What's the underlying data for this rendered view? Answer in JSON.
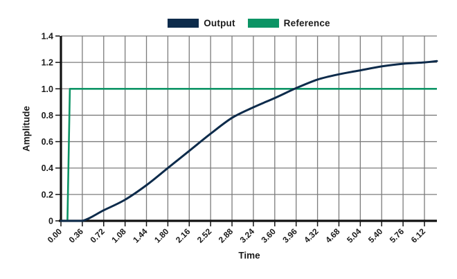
{
  "chart_data": {
    "type": "line",
    "title": "",
    "xlabel": "Time",
    "ylabel": "Amplitude",
    "xlim": [
      0,
      6.33
    ],
    "ylim": [
      0,
      1.4
    ],
    "grid": true,
    "legend_position": "top-center",
    "x_tick_labels": [
      "0.00",
      "0.36",
      "0.72",
      "1.08",
      "1.44",
      "1.80",
      "2.16",
      "2.52",
      "2.88",
      "3.24",
      "3.60",
      "3.96",
      "4.32",
      "4.68",
      "5.04",
      "5.40",
      "5.76",
      "6.12"
    ],
    "y_tick_labels": [
      "0",
      "0.2",
      "0.4",
      "0.6",
      "0.8",
      "1.0",
      "1.2",
      "1.4"
    ],
    "series": [
      {
        "name": "Output",
        "color": "#0d2b4b",
        "x": [
          0,
          0.36,
          0.72,
          1.08,
          1.44,
          1.8,
          2.16,
          2.52,
          2.88,
          3.24,
          3.6,
          3.96,
          4.32,
          4.68,
          5.04,
          5.4,
          5.76,
          6.12,
          6.33
        ],
        "y": [
          0,
          0,
          0.08,
          0.16,
          0.27,
          0.4,
          0.53,
          0.66,
          0.78,
          0.86,
          0.93,
          1.005,
          1.07,
          1.11,
          1.14,
          1.17,
          1.19,
          1.2,
          1.21
        ]
      },
      {
        "name": "Reference",
        "color": "#0c9465",
        "x": [
          0,
          0.11,
          0.15,
          6.33
        ],
        "y": [
          0,
          0,
          1.0,
          1.0
        ]
      }
    ]
  },
  "style": {
    "background": "#ffffff",
    "grid_color": "#7b7b7b",
    "axis_color": "#111111",
    "text_color": "#1a1a1a"
  }
}
